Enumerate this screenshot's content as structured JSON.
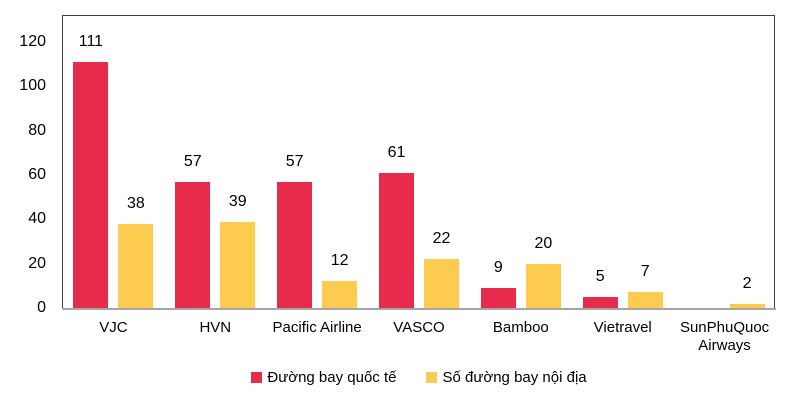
{
  "chart_data": {
    "type": "bar",
    "title": "",
    "xlabel": "",
    "ylabel": "",
    "categories": [
      "VJC",
      "HVN",
      "Pacific Airline",
      "VASCO",
      "Bamboo",
      "Vietravel",
      "SunPhuQuoc Airways"
    ],
    "series": [
      {
        "name": "Đường bay quốc tế",
        "color": "#e82b4d",
        "values": [
          111,
          57,
          57,
          61,
          9,
          5,
          0
        ]
      },
      {
        "name": "Số đường bay nội địa",
        "color": "#fdcb4f",
        "values": [
          38,
          39,
          12,
          22,
          20,
          7,
          2
        ]
      }
    ],
    "ylim": [
      0,
      120
    ],
    "yticks": [
      0,
      20,
      40,
      60,
      80,
      100,
      120
    ],
    "grid": false,
    "legend_position": "bottom",
    "data_labels": true,
    "zero_values_hidden": true
  },
  "colors": {
    "background": "#ffffff",
    "plot_border": "#3f3f3f",
    "axis_line": "#a6a6a6",
    "text": "#000000",
    "series_international": "#e82b4d",
    "series_domestic": "#fdcb4f"
  }
}
